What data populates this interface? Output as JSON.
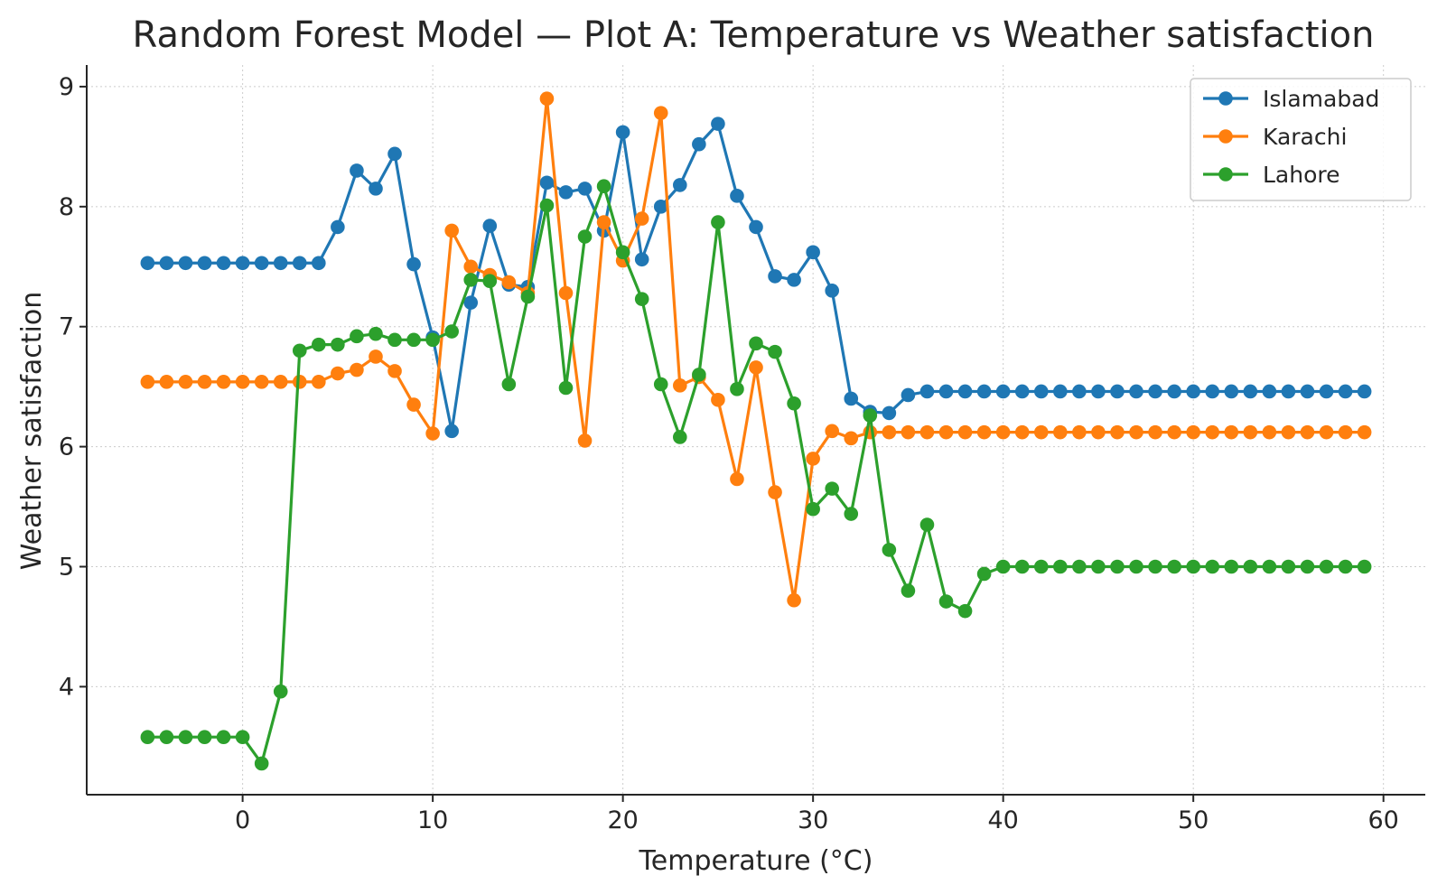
{
  "chart_data": {
    "type": "line",
    "title": "Random Forest Model — Plot A: Temperature vs Weather satisfaction",
    "xlabel": "Temperature (°C)",
    "ylabel": "Weather satisfaction",
    "xlim": [
      -8.2,
      62.2
    ],
    "ylim": [
      3.1,
      9.18
    ],
    "xticks": [
      0,
      10,
      20,
      30,
      40,
      50,
      60
    ],
    "yticks": [
      4,
      5,
      6,
      7,
      8,
      9
    ],
    "grid": true,
    "legend_position": "top-right",
    "x": [
      -5,
      -4,
      -3,
      -2,
      -1,
      0,
      1,
      2,
      3,
      4,
      5,
      6,
      7,
      8,
      9,
      10,
      11,
      12,
      13,
      14,
      15,
      16,
      17,
      18,
      19,
      20,
      21,
      22,
      23,
      24,
      25,
      26,
      27,
      28,
      29,
      30,
      31,
      32,
      33,
      34,
      35,
      36,
      37,
      38,
      39,
      40,
      41,
      42,
      43,
      44,
      45,
      46,
      47,
      48,
      49,
      50,
      51,
      52,
      53,
      54,
      55,
      56,
      57,
      58,
      59
    ],
    "series": [
      {
        "name": "Islamabad",
        "color": "#1f77b4",
        "values": [
          7.53,
          7.53,
          7.53,
          7.53,
          7.53,
          7.53,
          7.53,
          7.53,
          7.53,
          7.53,
          7.83,
          8.3,
          8.15,
          8.44,
          7.52,
          6.91,
          6.13,
          7.2,
          7.84,
          7.35,
          7.33,
          8.2,
          8.12,
          8.15,
          7.8,
          8.62,
          7.56,
          8.0,
          8.18,
          8.52,
          8.69,
          8.09,
          7.83,
          7.42,
          7.39,
          7.62,
          7.3,
          6.4,
          6.29,
          6.28,
          6.43,
          6.46,
          6.46,
          6.46,
          6.46,
          6.46,
          6.46,
          6.46,
          6.46,
          6.46,
          6.46,
          6.46,
          6.46,
          6.46,
          6.46,
          6.46,
          6.46,
          6.46,
          6.46,
          6.46,
          6.46,
          6.46,
          6.46,
          6.46,
          6.46
        ]
      },
      {
        "name": "Karachi",
        "color": "#ff7f0e",
        "values": [
          6.54,
          6.54,
          6.54,
          6.54,
          6.54,
          6.54,
          6.54,
          6.54,
          6.54,
          6.54,
          6.61,
          6.64,
          6.75,
          6.63,
          6.35,
          6.11,
          7.8,
          7.5,
          7.43,
          7.37,
          7.28,
          8.9,
          7.28,
          6.05,
          7.87,
          7.55,
          7.9,
          8.78,
          6.51,
          6.58,
          6.39,
          5.73,
          6.66,
          5.62,
          4.72,
          5.9,
          6.13,
          6.07,
          6.12,
          6.12,
          6.12,
          6.12,
          6.12,
          6.12,
          6.12,
          6.12,
          6.12,
          6.12,
          6.12,
          6.12,
          6.12,
          6.12,
          6.12,
          6.12,
          6.12,
          6.12,
          6.12,
          6.12,
          6.12,
          6.12,
          6.12,
          6.12,
          6.12,
          6.12,
          6.12
        ]
      },
      {
        "name": "Lahore",
        "color": "#2ca02c",
        "values": [
          3.58,
          3.58,
          3.58,
          3.58,
          3.58,
          3.58,
          3.36,
          3.96,
          6.8,
          6.85,
          6.85,
          6.92,
          6.94,
          6.89,
          6.89,
          6.89,
          6.96,
          7.39,
          7.38,
          6.52,
          7.25,
          8.01,
          6.49,
          7.75,
          8.17,
          7.62,
          7.23,
          6.52,
          6.08,
          6.6,
          7.87,
          6.48,
          6.86,
          6.79,
          6.36,
          5.48,
          5.65,
          5.44,
          6.26,
          5.14,
          4.8,
          5.35,
          4.71,
          4.63,
          4.94,
          5.0,
          5.0,
          5.0,
          5.0,
          5.0,
          5.0,
          5.0,
          5.0,
          5.0,
          5.0,
          5.0,
          5.0,
          5.0,
          5.0,
          5.0,
          5.0,
          5.0,
          5.0,
          5.0,
          5.0
        ]
      }
    ]
  }
}
